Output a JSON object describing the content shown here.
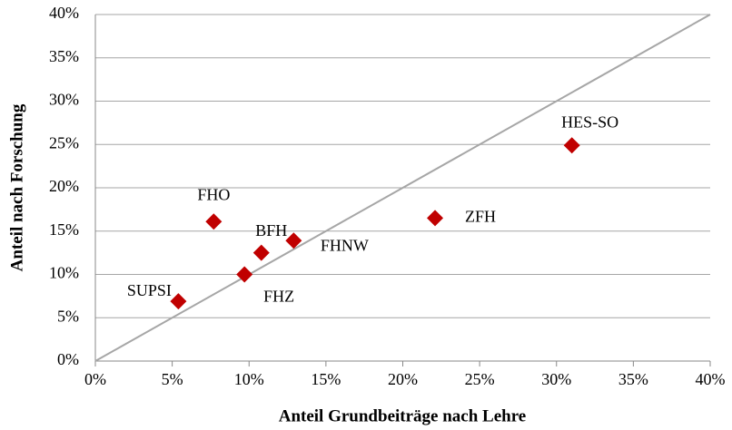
{
  "chart_data": {
    "type": "scatter",
    "x_label": "Anteil Grundbeiträge nach Lehre",
    "y_label": "Anteil nach Forschung",
    "point_labels": [
      "SUPSI",
      "FHO",
      "FHZ",
      "BFH",
      "FHNW",
      "ZFH",
      "HES-SO"
    ],
    "x": [
      5.4,
      7.7,
      9.7,
      10.8,
      12.9,
      22.1,
      31.0
    ],
    "values": [
      6.9,
      16.1,
      10.0,
      12.5,
      13.9,
      16.5,
      24.9
    ],
    "color": "#c00000",
    "xlim": [
      0,
      40
    ],
    "ylim": [
      0,
      40
    ],
    "xticks": [
      {
        "value": 0,
        "label": "0%"
      },
      {
        "value": 5,
        "label": "5%"
      },
      {
        "value": 10,
        "label": "10%"
      },
      {
        "value": 15,
        "label": "15%"
      },
      {
        "value": 20,
        "label": "20%"
      },
      {
        "value": 25,
        "label": "25%"
      },
      {
        "value": 30,
        "label": "30%"
      },
      {
        "value": 35,
        "label": "35%"
      },
      {
        "value": 40,
        "label": "40%"
      }
    ],
    "yticks": [
      {
        "value": 0,
        "label": "0%"
      },
      {
        "value": 5,
        "label": "5%"
      },
      {
        "value": 10,
        "label": "10%"
      },
      {
        "value": 15,
        "label": "15%"
      },
      {
        "value": 20,
        "label": "20%"
      },
      {
        "value": 25,
        "label": "25%"
      },
      {
        "value": 30,
        "label": "30%"
      },
      {
        "value": 35,
        "label": "35%"
      },
      {
        "value": 40,
        "label": "40%"
      }
    ],
    "grid": true
  }
}
